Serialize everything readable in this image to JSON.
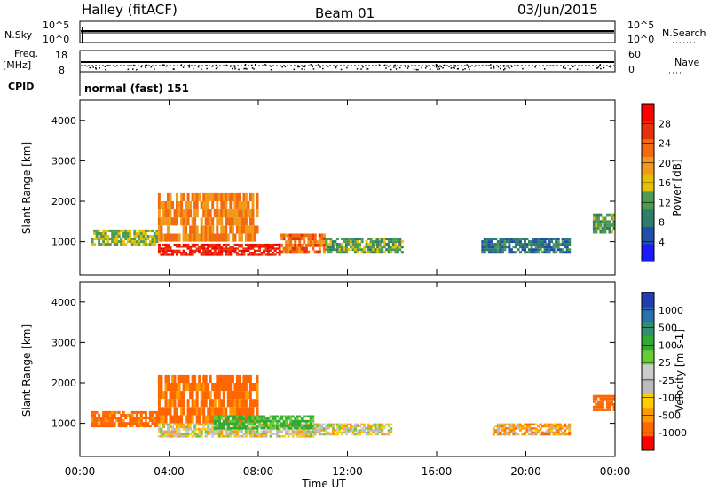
{
  "header": {
    "station": "Halley (fitACF)",
    "beam": "Beam 01",
    "date": "03/Jun/2015"
  },
  "noise_panel": {
    "left_label": "N.Sky",
    "right_label": "N.Search",
    "left_ticks": [
      "10^5",
      "10^0"
    ],
    "right_ticks": [
      "10^5",
      "10^0"
    ]
  },
  "freq_panel": {
    "left_label_line1": "Freq.",
    "left_label_line2": "[MHz]",
    "right_label": "Nave",
    "left_ticks": [
      "18",
      "8"
    ],
    "right_ticks": [
      "60",
      "0"
    ]
  },
  "cpid": {
    "label": "CPID",
    "value": "normal (fast) 151"
  },
  "colors": {
    "power_scale": [
      "#1a1aff",
      "#1f4fa8",
      "#2f7d6b",
      "#4e9a50",
      "#e6c000",
      "#f29a1a",
      "#f26a10",
      "#e8320c",
      "#ff0000"
    ],
    "velocity_scale": [
      "#ff0000",
      "#ff6600",
      "#ff9900",
      "#ffcc00",
      "#bbbbbb",
      "#cccccc",
      "#66cc33",
      "#33aa33",
      "#2f8f6f",
      "#2a6fae",
      "#1f3fb0"
    ]
  },
  "chart_data": [
    {
      "type": "heatmap",
      "name": "power",
      "ylabel": "Slant Range [km]",
      "xlabel": "",
      "colorbar_label": "Power [dB]",
      "colorbar_ticks": [
        "28",
        "24",
        "20",
        "16",
        "12",
        "8",
        "4"
      ],
      "y_ticks": [
        "4000",
        "3000",
        "2000",
        "1000"
      ],
      "ylim": [
        180,
        4500
      ],
      "xlim_hours": [
        0,
        24
      ],
      "grid": false,
      "regions": [
        {
          "start_h": 0.5,
          "end_h": 3.5,
          "range_min_km": 900,
          "range_max_km": 1300,
          "power_db": 14
        },
        {
          "start_h": 3.5,
          "end_h": 8.0,
          "range_min_km": 1000,
          "range_max_km": 2200,
          "power_db": 22
        },
        {
          "start_h": 3.5,
          "end_h": 9.0,
          "range_min_km": 650,
          "range_max_km": 950,
          "power_db": 30
        },
        {
          "start_h": 9.0,
          "end_h": 11.0,
          "range_min_km": 700,
          "range_max_km": 1200,
          "power_db": 24
        },
        {
          "start_h": 11.0,
          "end_h": 14.5,
          "range_min_km": 700,
          "range_max_km": 1100,
          "power_db": 12
        },
        {
          "start_h": 18.0,
          "end_h": 22.0,
          "range_min_km": 700,
          "range_max_km": 1100,
          "power_db": 7
        },
        {
          "start_h": 23.0,
          "end_h": 24.0,
          "range_min_km": 1200,
          "range_max_km": 1700,
          "power_db": 12
        }
      ]
    },
    {
      "type": "heatmap",
      "name": "velocity",
      "ylabel": "Slant Range [km]",
      "xlabel": "Time UT",
      "colorbar_label": "Velocity [m s-1]",
      "colorbar_ticks": [
        "1000",
        "500",
        "100",
        "25",
        "-25",
        "-100",
        "-500",
        "-1000"
      ],
      "y_ticks": [
        "4000",
        "3000",
        "2000",
        "1000"
      ],
      "x_ticks": [
        "00:00",
        "04:00",
        "08:00",
        "12:00",
        "16:00",
        "20:00",
        "00:00"
      ],
      "ylim": [
        180,
        4500
      ],
      "xlim_hours": [
        0,
        24
      ],
      "grid": false,
      "regions": [
        {
          "start_h": 0.5,
          "end_h": 3.5,
          "range_min_km": 900,
          "range_max_km": 1300,
          "velocity": -150
        },
        {
          "start_h": 3.5,
          "end_h": 8.0,
          "range_min_km": 1000,
          "range_max_km": 2200,
          "velocity": -150
        },
        {
          "start_h": 3.5,
          "end_h": 10.5,
          "range_min_km": 650,
          "range_max_km": 1000,
          "velocity": 0
        },
        {
          "start_h": 6.0,
          "end_h": 10.5,
          "range_min_km": 850,
          "range_max_km": 1200,
          "velocity": 120
        },
        {
          "start_h": 10.5,
          "end_h": 14.0,
          "range_min_km": 700,
          "range_max_km": 1000,
          "velocity": 0
        },
        {
          "start_h": 18.5,
          "end_h": 22.0,
          "range_min_km": 700,
          "range_max_km": 1000,
          "velocity": -60
        },
        {
          "start_h": 23.0,
          "end_h": 24.0,
          "range_min_km": 1300,
          "range_max_km": 1700,
          "velocity": -200
        }
      ]
    }
  ]
}
